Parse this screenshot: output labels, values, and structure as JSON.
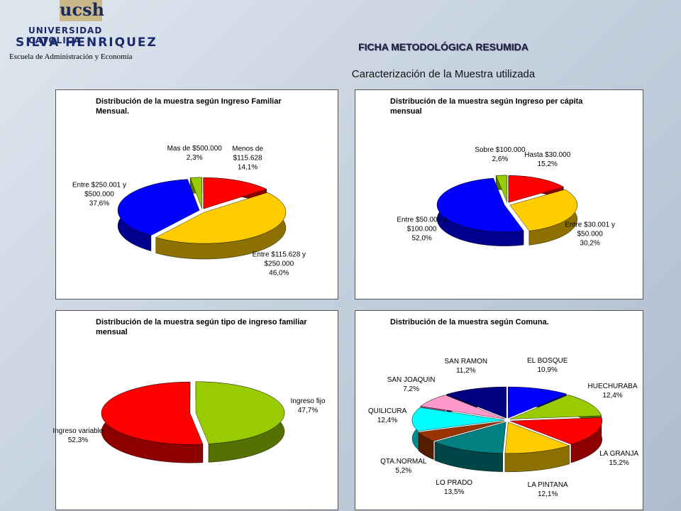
{
  "header": {
    "logo": "ucsh",
    "university": "UNIVERSIDAD CATOLICA",
    "name": "SILVA HENRIQUEZ",
    "school": "Escuela de Administración y Economía",
    "title": "FICHA METODOLÓGICA RESUMIDA",
    "subtitle": "Caracterización de la Muestra utilizada"
  },
  "chart_data": [
    {
      "type": "pie",
      "title": "Distribución de la muestra según Ingreso Familiar Mensual.",
      "categories": [
        "Menos de $115.628",
        "Entre $115.628 y $250.000",
        "Entre $250.001 y $500.000",
        "Mas de $500.000"
      ],
      "values": [
        14.1,
        46.0,
        37.6,
        2.3
      ],
      "value_labels": [
        "14,1%",
        "46,0%",
        "37,6%",
        "2,3%"
      ],
      "colors": [
        "#ff0000",
        "#ffcc00",
        "#0000ff",
        "#99cc00"
      ]
    },
    {
      "type": "pie",
      "title": "Distribución de la muestra según Ingreso per cápita mensual",
      "categories": [
        "Hasta $30.000",
        "Entre $30.001 y $50.000",
        "Entre $50.001 y $100.000",
        "Sobre $100.000"
      ],
      "values": [
        15.2,
        30.2,
        52.0,
        2.6
      ],
      "value_labels": [
        "15,2%",
        "30,2%",
        "52,0%",
        "2,6%"
      ],
      "colors": [
        "#ff0000",
        "#ffcc00",
        "#0000ff",
        "#99cc00"
      ]
    },
    {
      "type": "pie",
      "title": "Distribución de la muestra según tipo de ingreso familiar mensual",
      "categories": [
        "Ingreso fijo",
        "Ingreso variable"
      ],
      "values": [
        47.7,
        52.3
      ],
      "value_labels": [
        "47,7%",
        "52,3%"
      ],
      "colors": [
        "#99cc00",
        "#ff0000"
      ]
    },
    {
      "type": "pie",
      "title": "Distribución de la muestra según Comuna.",
      "categories": [
        "EL BOSQUE",
        "HUECHURABA",
        "LA GRANJA",
        "LA PINTANA",
        "LO PRADO",
        "QTA.NORMAL",
        "QUILICURA",
        "SAN JOAQUIN",
        "SAN RAMON"
      ],
      "values": [
        10.9,
        12.4,
        15.2,
        12.1,
        13.5,
        5.2,
        12.4,
        7.2,
        11.2
      ],
      "value_labels": [
        "10,9%",
        "12,4%",
        "15,2%",
        "12,1%",
        "13,5%",
        "5,2%",
        "12,4%",
        "7,2%",
        "11,2%"
      ],
      "colors": [
        "#0000ff",
        "#99cc00",
        "#ff0000",
        "#ffcc00",
        "#008080",
        "#993300",
        "#00ffff",
        "#ff99cc",
        "#000080"
      ]
    }
  ]
}
